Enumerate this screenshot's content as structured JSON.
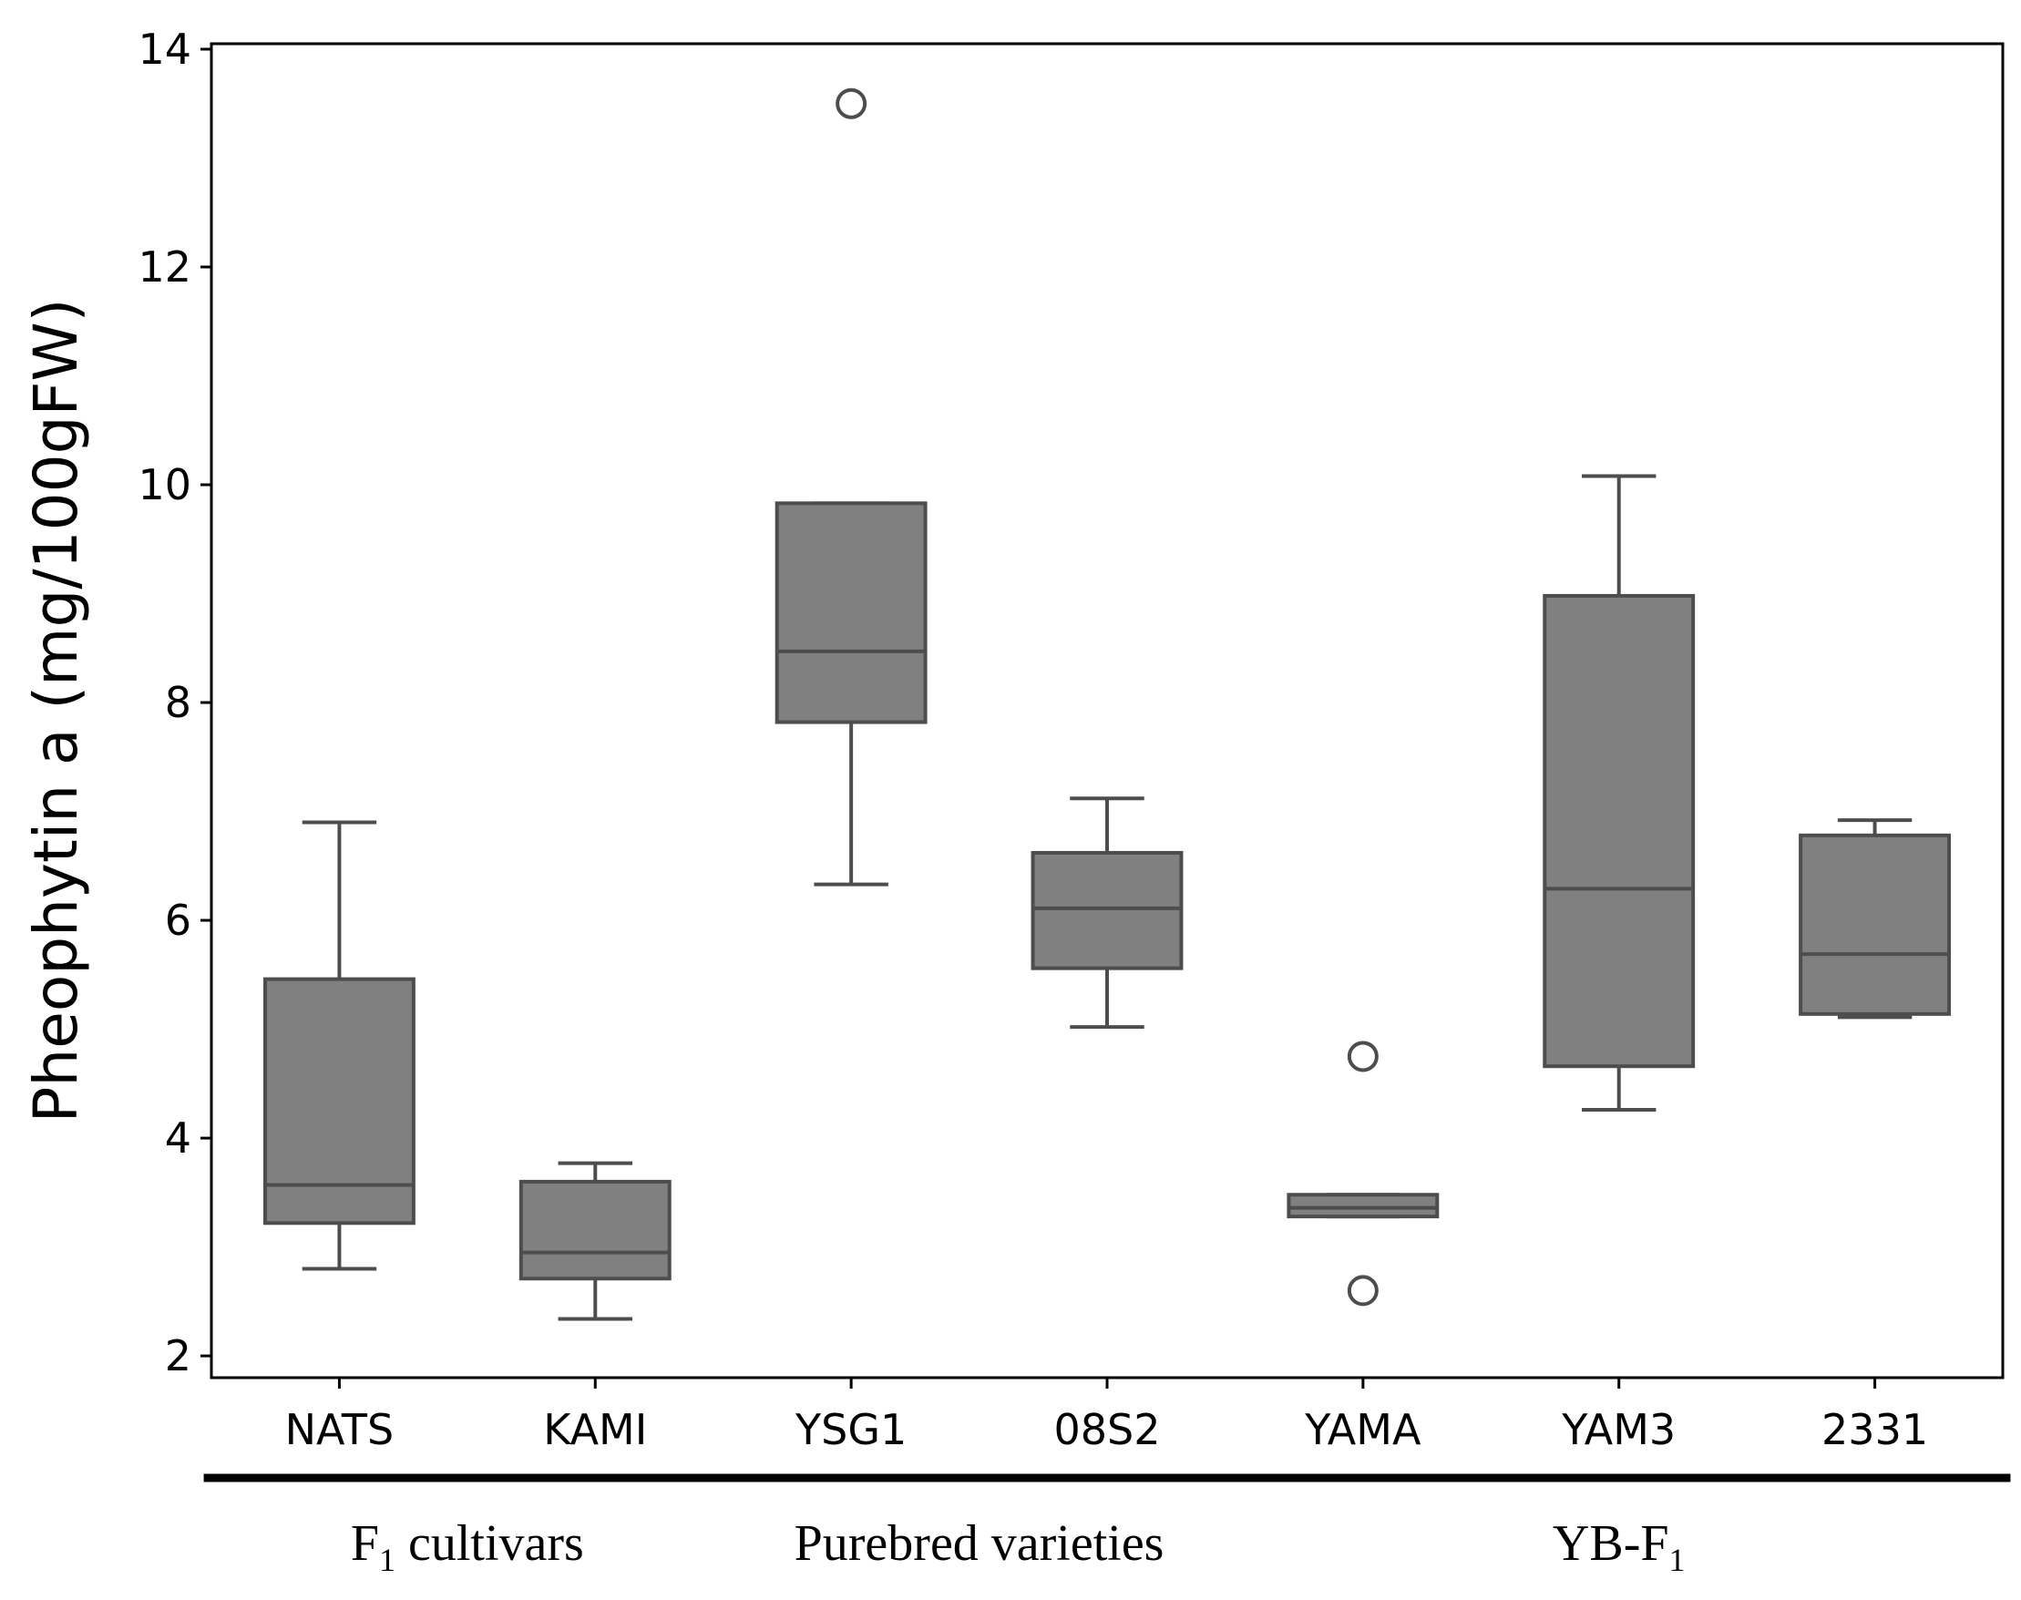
{
  "chart_data": {
    "type": "boxplot",
    "title": "",
    "xlabel": "",
    "ylabel": "Pheophytin a (mg/100gFW)",
    "ylim": [
      1.8,
      14.05
    ],
    "yticks": [
      2,
      4,
      6,
      8,
      10,
      12,
      14
    ],
    "categories": [
      "NATS",
      "KAMI",
      "YSG1",
      "08S2",
      "YAMA",
      "YAM3",
      "2331"
    ],
    "box_color": "#808080",
    "line_color": "#4d4d4d",
    "boxes": [
      {
        "name": "NATS",
        "whisker_low": 2.8,
        "q1": 3.22,
        "median": 3.57,
        "q3": 5.46,
        "whisker_high": 6.9,
        "outliers": []
      },
      {
        "name": "KAMI",
        "whisker_low": 2.34,
        "q1": 2.71,
        "median": 2.95,
        "q3": 3.6,
        "whisker_high": 3.77,
        "outliers": []
      },
      {
        "name": "YSG1",
        "whisker_low": 6.33,
        "q1": 7.82,
        "median": 8.47,
        "q3": 9.83,
        "whisker_high": 9.83,
        "outliers": [
          13.5
        ]
      },
      {
        "name": "08S2",
        "whisker_low": 5.02,
        "q1": 5.56,
        "median": 6.11,
        "q3": 6.62,
        "whisker_high": 7.12,
        "outliers": []
      },
      {
        "name": "YAMA",
        "whisker_low": 3.28,
        "q1": 3.28,
        "median": 3.36,
        "q3": 3.48,
        "whisker_high": 3.48,
        "outliers": [
          4.75,
          2.6
        ]
      },
      {
        "name": "YAM3",
        "whisker_low": 4.26,
        "q1": 4.66,
        "median": 6.29,
        "q3": 8.98,
        "whisker_high": 10.08,
        "outliers": []
      },
      {
        "name": "2331",
        "whisker_low": 5.11,
        "q1": 5.14,
        "median": 5.69,
        "q3": 6.78,
        "whisker_high": 6.92,
        "outliers": []
      }
    ],
    "groups": [
      {
        "label": "F",
        "sub": "1",
        "suffix": " cultivars",
        "members": [
          "NATS",
          "KAMI"
        ]
      },
      {
        "label": "Purebred varieties",
        "sub": "",
        "suffix": "",
        "members": [
          "YSG1",
          "08S2"
        ]
      },
      {
        "label": "YB-F",
        "sub": "1",
        "suffix": "",
        "members": [
          "YAMA",
          "YAM3",
          "2331"
        ]
      }
    ]
  }
}
